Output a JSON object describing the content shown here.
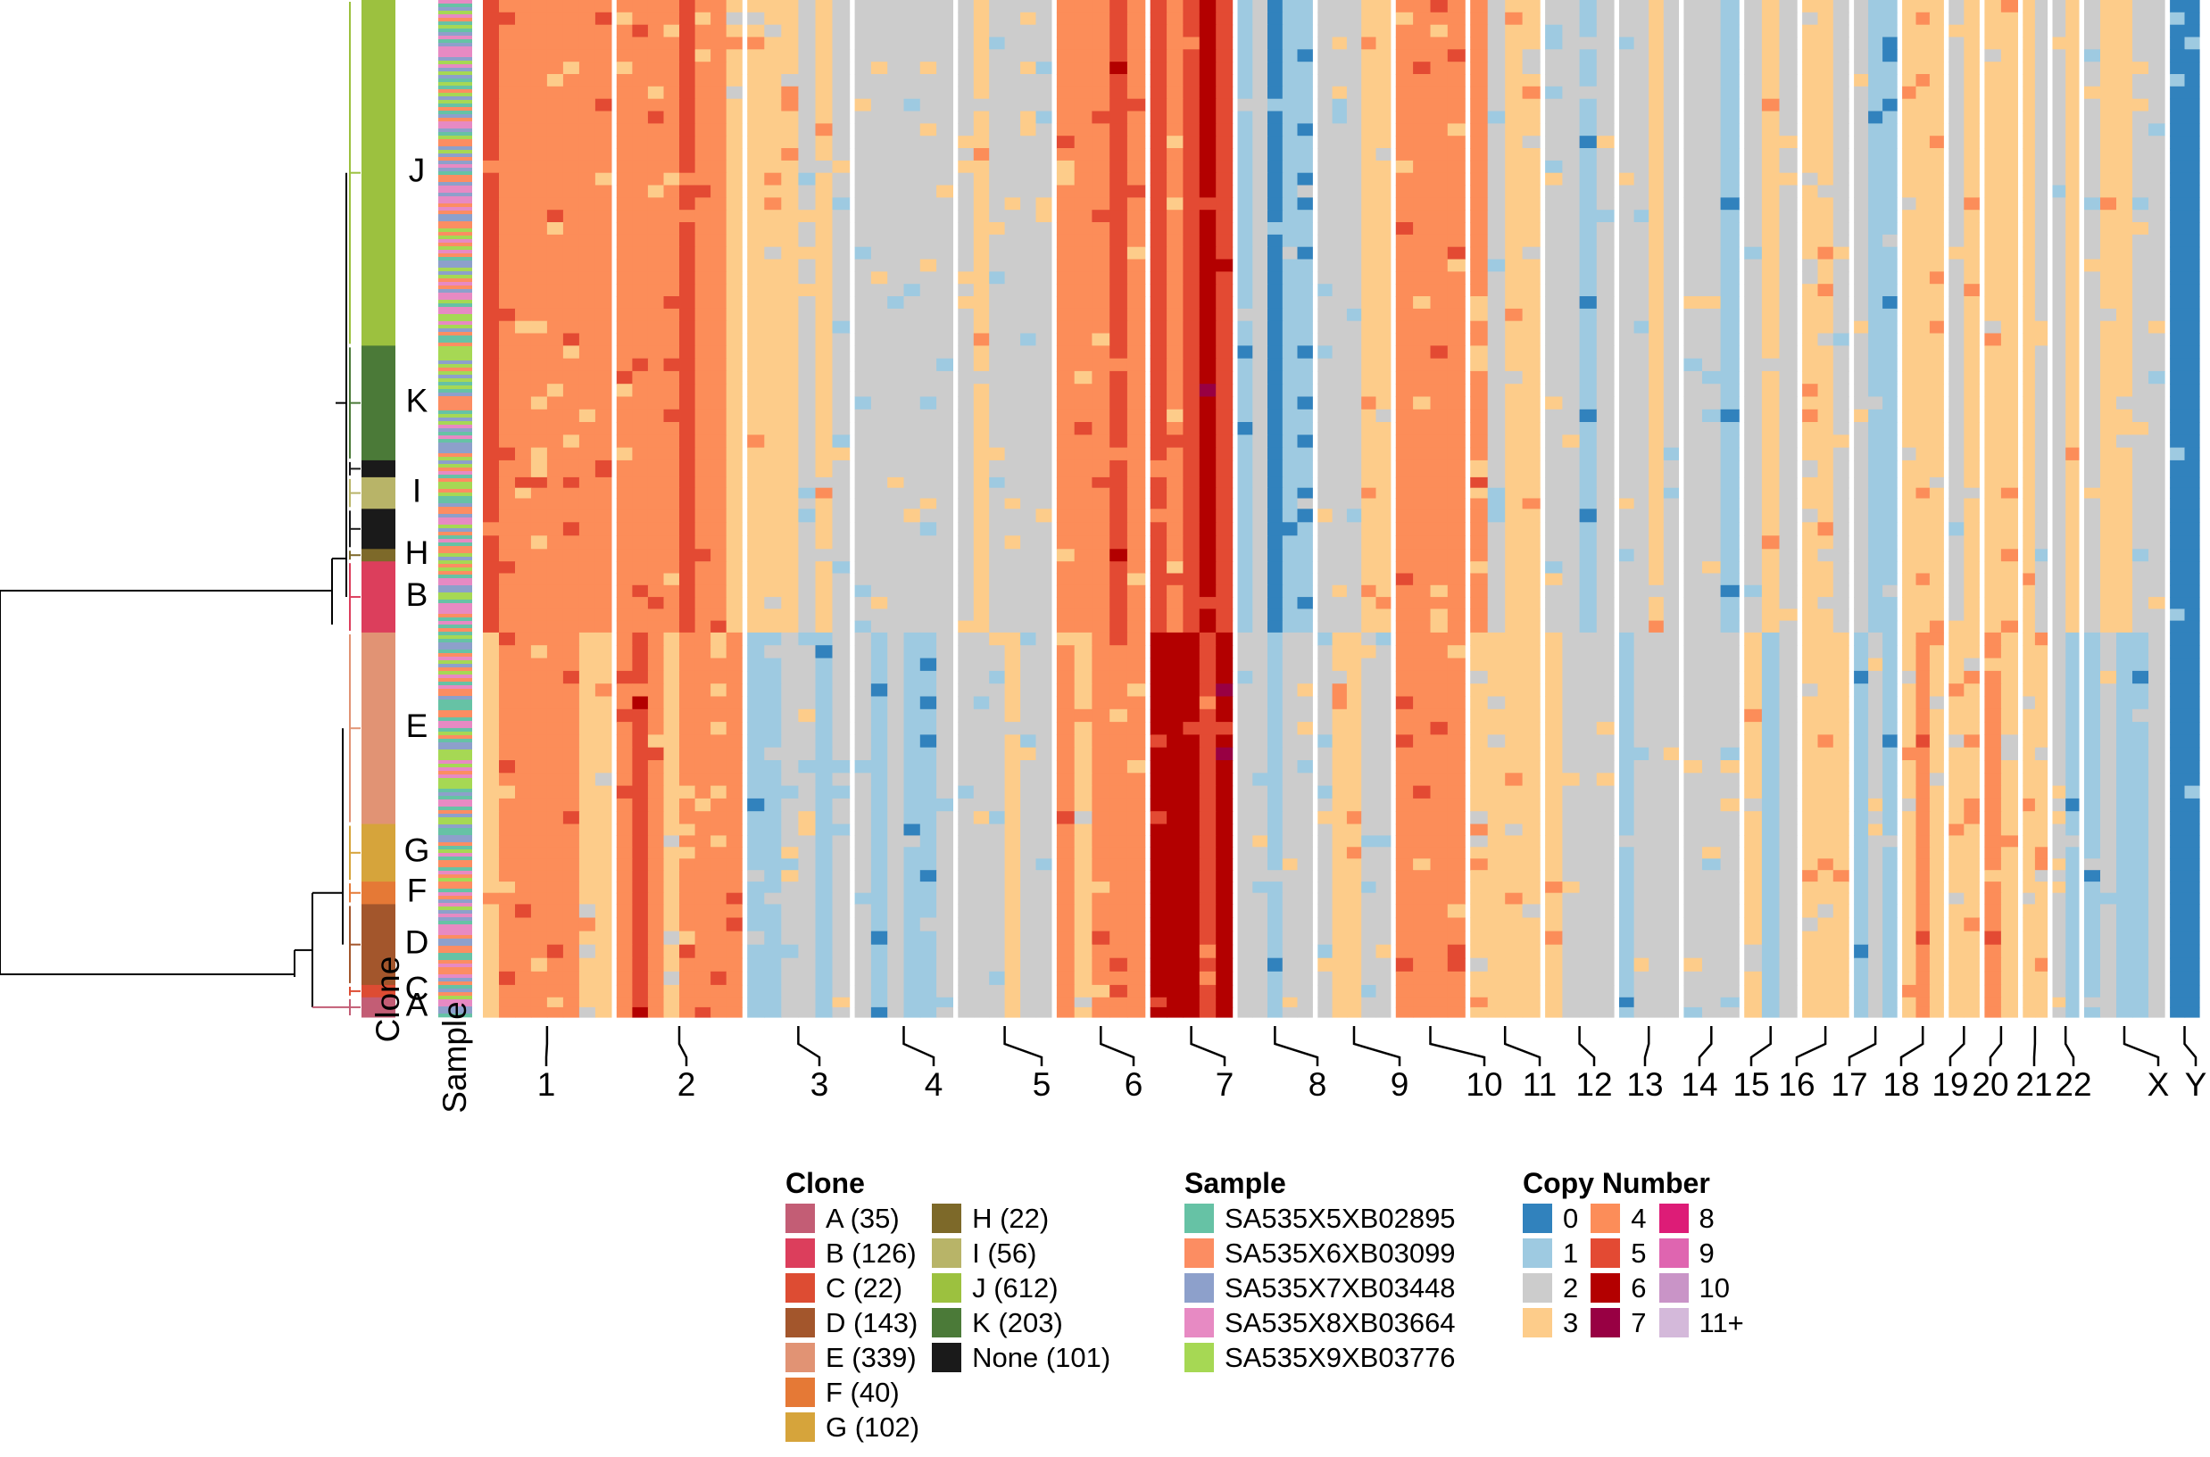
{
  "chart_data": {
    "type": "heatmap",
    "title": "",
    "xlabel": "",
    "ylabel": "",
    "row_annotations": [
      {
        "label": "Clone",
        "text": "Clone"
      },
      {
        "label": "Sample",
        "text": "Sample"
      }
    ],
    "chromosomes": [
      "1",
      "2",
      "3",
      "4",
      "5",
      "6",
      "7",
      "8",
      "9",
      "10",
      "11",
      "12",
      "13",
      "14",
      "15",
      "16",
      "17",
      "18",
      "19",
      "20",
      "21",
      "22",
      "X",
      "Y"
    ],
    "chromosome_relative_sizes": [
      249,
      243,
      198,
      190,
      181,
      171,
      159,
      145,
      141,
      134,
      135,
      133,
      115,
      107,
      102,
      90,
      83,
      80,
      59,
      64,
      47,
      51,
      156,
      57
    ],
    "clone_blocks_top_to_bottom": [
      {
        "clone": "J",
        "label": "J",
        "cells": 612
      },
      {
        "clone": "K",
        "label": "K",
        "cells": 203
      },
      {
        "clone": "None",
        "label": "",
        "cells": 30
      },
      {
        "clone": "I",
        "label": "I",
        "cells": 56
      },
      {
        "clone": "None",
        "label": "",
        "cells": 71
      },
      {
        "clone": "H",
        "label": "H",
        "cells": 22
      },
      {
        "clone": "B",
        "label": "B",
        "cells": 126
      },
      {
        "clone": "E",
        "label": "E",
        "cells": 339
      },
      {
        "clone": "G",
        "label": "G",
        "cells": 102
      },
      {
        "clone": "F",
        "label": "F",
        "cells": 40
      },
      {
        "clone": "D",
        "label": "D",
        "cells": 143
      },
      {
        "clone": "C",
        "label": "C",
        "cells": 22
      },
      {
        "clone": "A",
        "label": "A",
        "cells": 35
      }
    ],
    "dominant_copy_number_by_clone_group": {
      "J_K_I_H_B": {
        "1": 4,
        "2": 4,
        "3": 3,
        "4": 2,
        "5": 2,
        "6": 4,
        "7": 5,
        "8": 1,
        "9": 2,
        "10": 4,
        "11": 3,
        "12": 2,
        "13": 2,
        "14": 2,
        "15": 2,
        "16": 3,
        "17": 1,
        "18": 3,
        "19": 3,
        "20": 3,
        "21": 3,
        "22": 2,
        "X": 2,
        "Y": 0
      },
      "E_G_F_D_C_A": {
        "1": 4,
        "2": 4,
        "3": 2,
        "4": 2,
        "5": 2,
        "6": 4,
        "7": 6,
        "8": 2,
        "9": 2,
        "10": 4,
        "11": 3,
        "12": 2,
        "13": 2,
        "14": 2,
        "15": 2,
        "16": 3,
        "17": 2,
        "18": 3,
        "19": 3,
        "20": 3,
        "21": 3,
        "22": 2,
        "X": 1,
        "Y": 0
      }
    },
    "legends": {
      "clone": {
        "title": "Clone",
        "items": [
          {
            "label": "A (35)",
            "color": "#c35d75"
          },
          {
            "label": "B (126)",
            "color": "#dc3e5c"
          },
          {
            "label": "C (22)",
            "color": "#dd4c33"
          },
          {
            "label": "D (143)",
            "color": "#a3562c"
          },
          {
            "label": "E (339)",
            "color": "#e19374"
          },
          {
            "label": "F (40)",
            "color": "#e57936"
          },
          {
            "label": "G (102)",
            "color": "#d6a43b"
          },
          {
            "label": "H (22)",
            "color": "#7d6929"
          },
          {
            "label": "I (56)",
            "color": "#b8b468"
          },
          {
            "label": "J (612)",
            "color": "#9cc13f"
          },
          {
            "label": "K (203)",
            "color": "#4b7a38"
          },
          {
            "label": "None (101)",
            "color": "#1a1a1a"
          }
        ]
      },
      "sample": {
        "title": "Sample",
        "items": [
          {
            "label": "SA535X5XB02895",
            "color": "#66c2a5"
          },
          {
            "label": "SA535X6XB03099",
            "color": "#fc8d62"
          },
          {
            "label": "SA535X7XB03448",
            "color": "#8da0cb"
          },
          {
            "label": "SA535X8XB03664",
            "color": "#e78ac3"
          },
          {
            "label": "SA535X9XB03776",
            "color": "#a6d854"
          }
        ]
      },
      "copy_number": {
        "title": "Copy Number",
        "items": [
          {
            "label": "0",
            "color": "#3182bd"
          },
          {
            "label": "1",
            "color": "#9ecae1"
          },
          {
            "label": "2",
            "color": "#cccccc"
          },
          {
            "label": "3",
            "color": "#fdcc8a"
          },
          {
            "label": "4",
            "color": "#fc8d59"
          },
          {
            "label": "5",
            "color": "#e34a33"
          },
          {
            "label": "6",
            "color": "#b30000"
          },
          {
            "label": "7",
            "color": "#980043"
          },
          {
            "label": "8",
            "color": "#dd1c77"
          },
          {
            "label": "9",
            "color": "#df65b0"
          },
          {
            "label": "10",
            "color": "#c994c7"
          },
          {
            "label": "11+",
            "color": "#d4b9da"
          }
        ]
      }
    }
  }
}
